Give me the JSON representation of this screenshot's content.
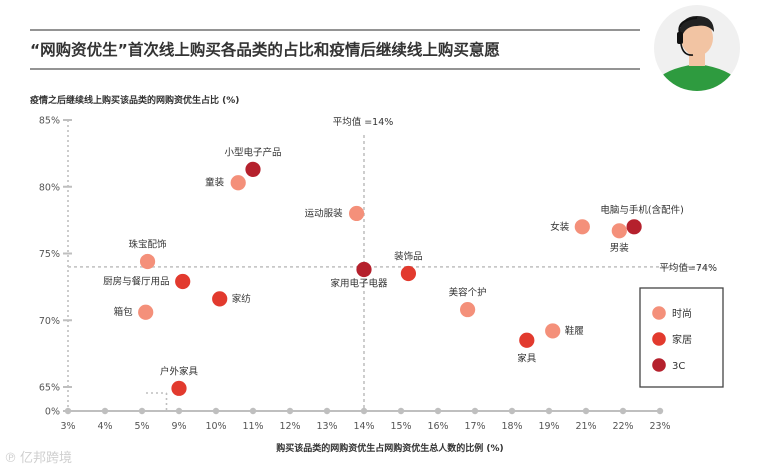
{
  "header": {
    "title": "“网购资优生”首次线上购买各品类的占比和疫情后继续线上购买意愿"
  },
  "watermark": {
    "text": "亿邦跨境"
  },
  "colors": {
    "fashion": "#f4907a",
    "home": "#e23a2e",
    "3c": "#b5212d",
    "axis": "#bfbfbf",
    "divider": "#555555",
    "avatar_bg": "#f0f0f0",
    "avatar_shirt": "#2e9b3f"
  },
  "chart_data": {
    "type": "scatter",
    "ylabel": "疫情之后继续线上购买该品类的网购资优生占比 (%)",
    "xlabel": "购买该品类的网购资优生占网购资优生总人数的比例 (%)",
    "x_ticks": [
      "3%",
      "4%",
      "5%",
      "9%",
      "10%",
      "11%",
      "12%",
      "13%",
      "14%",
      "15%",
      "16%",
      "17%",
      "18%",
      "19%",
      "21%",
      "22%",
      "23%"
    ],
    "y_ticks": [
      "0%",
      "65%",
      "70%",
      "75%",
      "80%",
      "85%"
    ],
    "ref_lines": {
      "x_label": "平均值 =14%",
      "y_label": "平均值=74%"
    },
    "legend": [
      {
        "key": "fashion",
        "label": "时尚"
      },
      {
        "key": "home",
        "label": "家居"
      },
      {
        "key": "3c",
        "label": "3C"
      }
    ],
    "points": [
      {
        "label": "小型电子产品",
        "group": "3c",
        "x": 11,
        "y": 81.3
      },
      {
        "label": "童装",
        "group": "fashion",
        "x": 10.6,
        "y": 80.3
      },
      {
        "label": "运动服装",
        "group": "fashion",
        "x": 13.8,
        "y": 78.0
      },
      {
        "label": "珠宝配饰",
        "group": "fashion",
        "x": 5.6,
        "y": 74.4
      },
      {
        "label": "厨房与餐厅用品",
        "group": "home",
        "x": 9.1,
        "y": 72.9
      },
      {
        "label": "家纺",
        "group": "home",
        "x": 10.1,
        "y": 71.6
      },
      {
        "label": "箱包",
        "group": "fashion",
        "x": 5.4,
        "y": 70.6
      },
      {
        "label": "家用电子电器",
        "group": "3c",
        "x": 14.0,
        "y": 73.8
      },
      {
        "label": "装饰品",
        "group": "home",
        "x": 15.2,
        "y": 73.5
      },
      {
        "label": "美容个护",
        "group": "fashion",
        "x": 16.8,
        "y": 70.8
      },
      {
        "label": "家具",
        "group": "home",
        "x": 18.4,
        "y": 68.5
      },
      {
        "label": "鞋履",
        "group": "fashion",
        "x": 19.2,
        "y": 69.2
      },
      {
        "label": "女装",
        "group": "fashion",
        "x": 20.8,
        "y": 77.0
      },
      {
        "label": "电脑与手机(含配件)",
        "group": "3c",
        "x": 22.3,
        "y": 77.0
      },
      {
        "label": "男装",
        "group": "fashion",
        "x": 21.9,
        "y": 76.7
      },
      {
        "label": "户外家具",
        "group": "home",
        "x": 9.0,
        "y": 64.9
      }
    ]
  }
}
